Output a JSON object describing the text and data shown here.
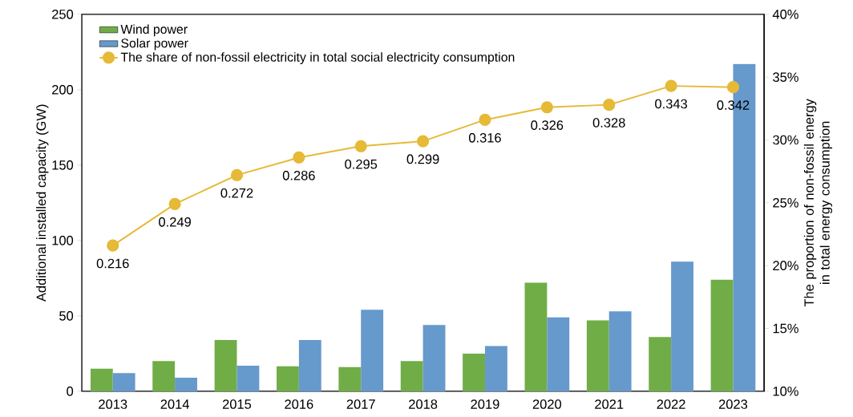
{
  "chart_data": {
    "type": "bar",
    "categories": [
      "2013",
      "2014",
      "2015",
      "2016",
      "2017",
      "2018",
      "2019",
      "2020",
      "2021",
      "2022",
      "2023"
    ],
    "ylabel": "Additional installed capacity (GW)",
    "y2label": "The proportion of non-fossil energy in  total energy consumption",
    "ylim": [
      0,
      250
    ],
    "yticks": [
      0,
      50,
      100,
      150,
      200,
      250
    ],
    "y2lim": [
      0.1,
      0.4
    ],
    "y2ticks": [
      {
        "value": 0.1,
        "label": "10%"
      },
      {
        "value": 0.15,
        "label": "15%"
      },
      {
        "value": 0.2,
        "label": "20%"
      },
      {
        "value": 0.25,
        "label": "25%"
      },
      {
        "value": 0.3,
        "label": "30%"
      },
      {
        "value": 0.35,
        "label": "35%"
      },
      {
        "value": 0.4,
        "label": "40%"
      }
    ],
    "legend": "top left",
    "series": [
      {
        "name": "Wind power",
        "color": "#70ad47",
        "values": [
          15,
          20,
          34,
          16.5,
          16,
          20,
          25,
          72,
          47,
          36,
          74
        ]
      },
      {
        "name": "Solar power",
        "color": "#6699cc",
        "values": [
          12,
          9,
          17,
          34,
          54,
          44,
          30,
          49,
          53,
          86,
          217
        ]
      },
      {
        "name": "The share of non-fossil electricity in total social electricity consumption",
        "type": "line",
        "axis": "y2",
        "marker": "circle",
        "color": "#e6b937",
        "values": [
          0.216,
          0.249,
          0.272,
          0.286,
          0.295,
          0.299,
          0.316,
          0.326,
          0.328,
          0.343,
          0.342
        ],
        "value_labels": [
          "0.216",
          "0.249",
          "0.272",
          "0.286",
          "0.295",
          "0.299",
          "0.316",
          "0.326",
          "0.328",
          "0.343",
          "0.342"
        ]
      }
    ]
  }
}
